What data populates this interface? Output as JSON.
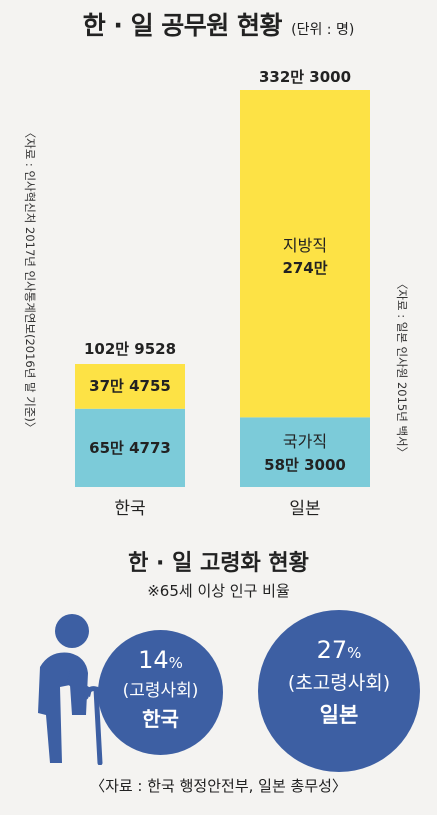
{
  "header": {
    "title": "한 · 일 공무원 현황",
    "unit": "(단위 : 명)"
  },
  "source_left": "〈자료 : 인사혁신처 2017년 인사통계연보(2016년 말 기준)〉",
  "source_right": "〈자료 : 일본 인사원 2015년 백서〉",
  "chart_data": {
    "type": "bar",
    "stacked": true,
    "categories": [
      "한국",
      "일본"
    ],
    "series": [
      {
        "name": "국가직",
        "values": [
          654773,
          583000
        ],
        "color": "#7ccbd9"
      },
      {
        "name": "지방직",
        "values": [
          374755,
          2740000
        ],
        "color": "#fde245"
      }
    ],
    "totals": [
      1029528,
      3323000
    ],
    "total_labels": [
      "102만 9528",
      "332만 3000"
    ],
    "segment_labels": [
      [
        "65만 4773",
        "37만 4755"
      ],
      [
        "국가직",
        "58만 3000",
        "지방직",
        "274만"
      ]
    ],
    "ylim": [
      0,
      3323000
    ]
  },
  "section2": {
    "title": "한 · 일 고령화 현황",
    "note": "※65세 이상 인구 비율",
    "korea": {
      "percent": "14",
      "unit": "%",
      "label": "(고령사회)",
      "country": "한국"
    },
    "japan": {
      "percent": "27",
      "unit": "%",
      "label": "(초고령사회)",
      "country": "일본"
    },
    "colors": {
      "circle": "#3d5fa3",
      "figure": "#3d5fa3"
    }
  },
  "footer": "〈자료 : 한국 행정안전부, 일본 총무성〉"
}
